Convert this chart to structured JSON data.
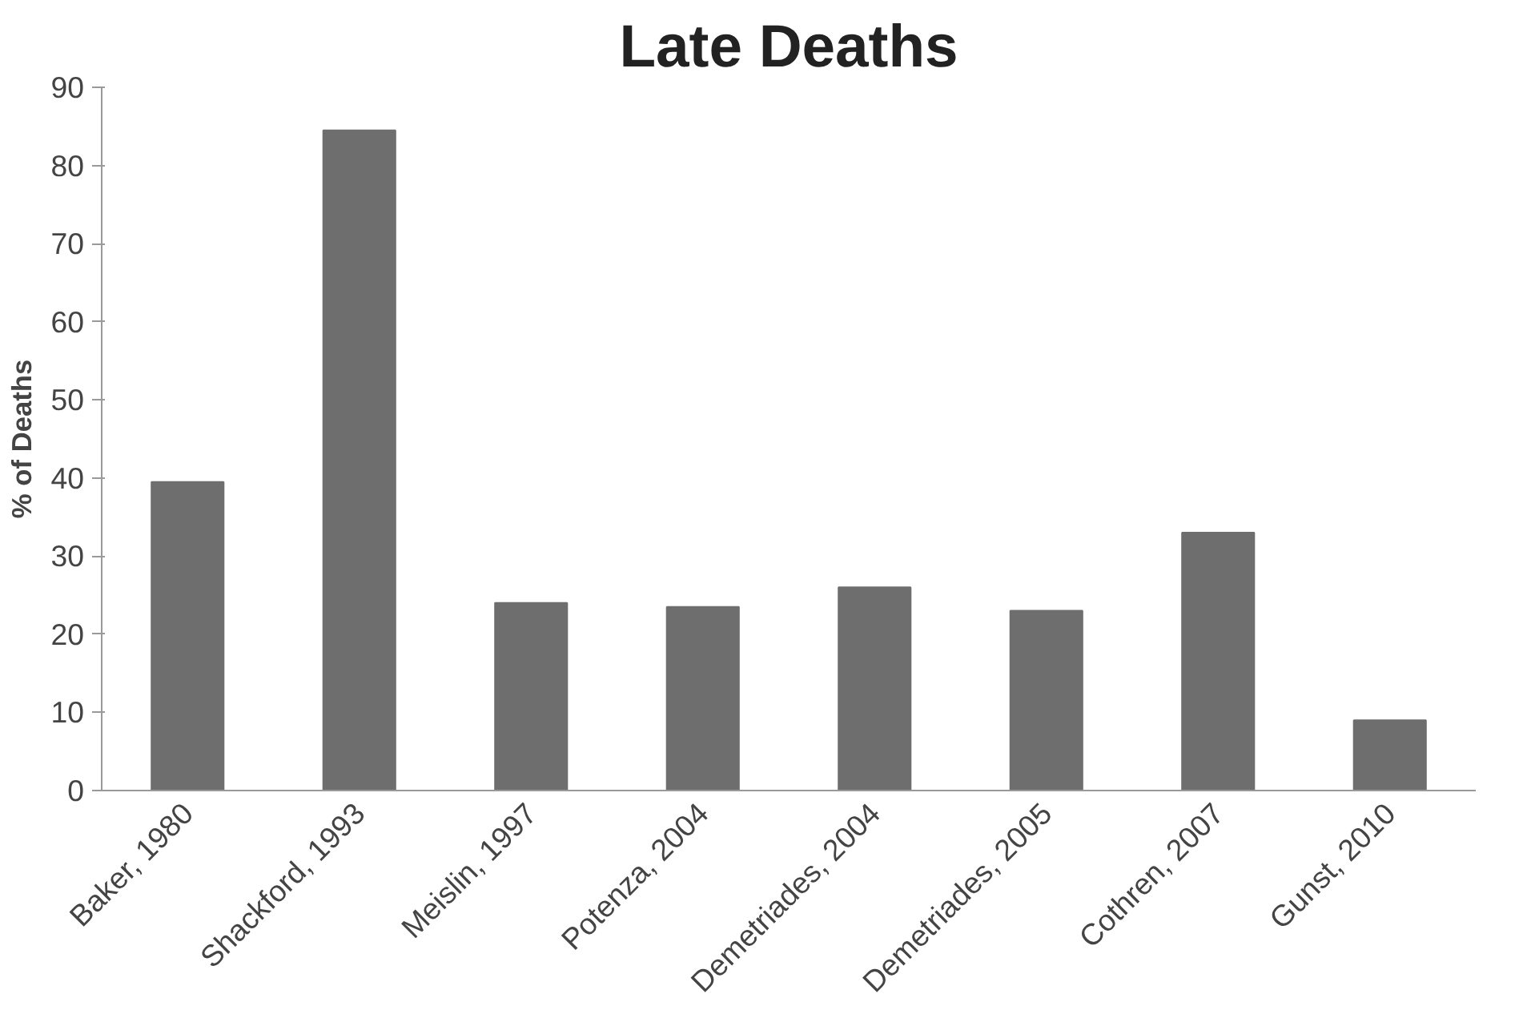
{
  "chart_data": {
    "type": "bar",
    "title": "Late Deaths",
    "ylabel": "% of Deaths",
    "categories": [
      "Baker, 1980",
      "Shackford, 1993",
      "Meislin, 1997",
      "Potenza, 2004",
      "Demetriades, 2004",
      "Demetriades, 2005",
      "Cothren, 2007",
      "Gunst, 2010"
    ],
    "values": [
      39.5,
      84.5,
      24,
      23.5,
      26,
      23,
      33,
      9
    ],
    "color": "#6e6e6e",
    "ylim": [
      0,
      90
    ],
    "yticks": [
      0,
      10,
      20,
      30,
      40,
      50,
      60,
      70,
      80,
      90
    ],
    "grid": false
  }
}
